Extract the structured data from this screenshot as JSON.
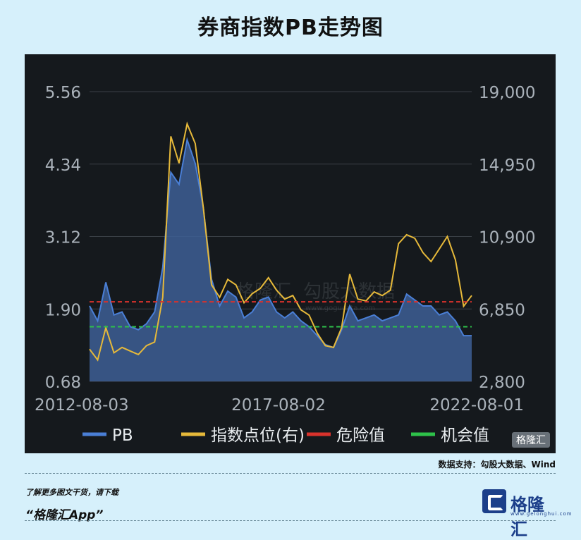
{
  "title": "券商指数PB走势图",
  "source": "数据支持：勾股大数据、Wind",
  "cta": {
    "line1": "了解更多图文干货，请下载",
    "line2": "“格隆汇App”"
  },
  "logo": {
    "name": "格隆汇",
    "domain": "www.gelonghui.com"
  },
  "watermark": {
    "text": "格隆汇",
    "data_text": "勾股大数据",
    "data_url": "www.gogudata.com"
  },
  "colors": {
    "pb": "#4a7fd6",
    "index": "#e6b93a",
    "danger": "#d9322c",
    "opportunity": "#2ec24a"
  },
  "chart_data": {
    "type": "line",
    "title": "券商指数PB走势图",
    "x_ticks": [
      "2012-08-03",
      "2017-08-02",
      "2022-08-01"
    ],
    "y_left": {
      "ticks": [
        "0.68",
        "1.90",
        "3.12",
        "4.34",
        "5.56"
      ],
      "range": [
        0.68,
        5.56
      ]
    },
    "y_right": {
      "ticks": [
        "2,800",
        "6,850",
        "10,900",
        "14,950",
        "19,000"
      ],
      "range": [
        2800,
        19000
      ]
    },
    "grid": "horizontal",
    "legend": {
      "position": "bottom",
      "items": [
        {
          "key": "pb",
          "label": "PB"
        },
        {
          "key": "index",
          "label": "指数点位(右)"
        },
        {
          "key": "danger",
          "label": "危险值"
        },
        {
          "key": "opportunity",
          "label": "机会值"
        }
      ]
    },
    "reference_lines": {
      "danger": 2.02,
      "opportunity": 1.6
    },
    "x": [
      "2012-08",
      "2012-11",
      "2013-02",
      "2013-05",
      "2013-08",
      "2013-11",
      "2014-02",
      "2014-05",
      "2014-08",
      "2014-10",
      "2014-12",
      "2015-02",
      "2015-04",
      "2015-05",
      "2015-06",
      "2015-07",
      "2015-08",
      "2015-10",
      "2015-12",
      "2016-02",
      "2016-05",
      "2016-08",
      "2016-11",
      "2017-02",
      "2017-05",
      "2017-08",
      "2017-11",
      "2018-02",
      "2018-05",
      "2018-08",
      "2018-10",
      "2019-01",
      "2019-03",
      "2019-05",
      "2019-08",
      "2019-11",
      "2020-02",
      "2020-05",
      "2020-07",
      "2020-09",
      "2020-12",
      "2021-03",
      "2021-06",
      "2021-09",
      "2021-12",
      "2022-03",
      "2022-05",
      "2022-08"
    ],
    "series": [
      {
        "name": "PB",
        "axis": "left",
        "values": [
          1.95,
          1.7,
          2.35,
          1.8,
          1.85,
          1.6,
          1.55,
          1.65,
          1.85,
          2.6,
          4.2,
          4.0,
          4.75,
          4.35,
          3.6,
          2.4,
          1.95,
          2.2,
          2.1,
          1.75,
          1.85,
          2.05,
          2.1,
          1.85,
          1.75,
          1.85,
          1.7,
          1.6,
          1.45,
          1.3,
          1.25,
          1.55,
          1.95,
          1.7,
          1.75,
          1.8,
          1.7,
          1.75,
          1.8,
          2.15,
          2.05,
          1.95,
          1.95,
          1.8,
          1.85,
          1.7,
          1.45,
          1.45
        ]
      },
      {
        "name": "指数点位(右)",
        "axis": "right",
        "values": [
          4600,
          4000,
          5800,
          4400,
          4700,
          4500,
          4300,
          4800,
          5000,
          7500,
          16500,
          15000,
          17200,
          16100,
          12500,
          8200,
          7500,
          8500,
          8200,
          7200,
          7700,
          8000,
          8600,
          7900,
          7400,
          7600,
          6800,
          6500,
          5500,
          4800,
          4700,
          5800,
          8800,
          7400,
          7300,
          7800,
          7600,
          7900,
          10500,
          11000,
          10800,
          10000,
          9500,
          10200,
          10900,
          9600,
          7000,
          7600
        ]
      }
    ]
  }
}
